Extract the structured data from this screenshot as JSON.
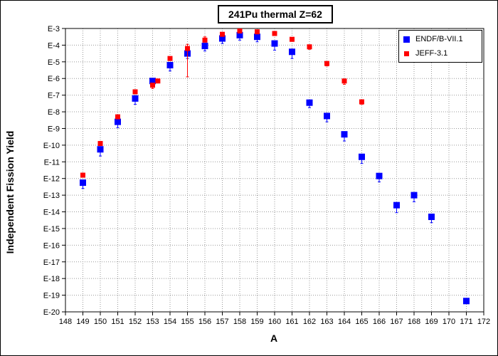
{
  "chart_data": {
    "type": "scatter",
    "title": "241Pu thermal Z=62",
    "xlabel": "A",
    "ylabel": "Independent Fission Yield",
    "xlim": [
      148,
      172
    ],
    "ylim_log10": [
      -20,
      -3
    ],
    "y_scale": "log",
    "grid": true,
    "legend_position": "top-right",
    "x_ticks": [
      "148",
      "149",
      "150",
      "151",
      "152",
      "153",
      "154",
      "155",
      "156",
      "157",
      "158",
      "159",
      "160",
      "161",
      "162",
      "163",
      "164",
      "165",
      "166",
      "167",
      "168",
      "169",
      "170",
      "171",
      "172"
    ],
    "y_ticks": [
      "E-3",
      "E-4",
      "E-5",
      "E-6",
      "E-7",
      "E-8",
      "E-9",
      "E-10",
      "E-11",
      "E-12",
      "E-13",
      "E-14",
      "E-15",
      "E-16",
      "E-17",
      "E-18",
      "E-19",
      "E-20"
    ],
    "series": [
      {
        "name": "ENDF/B-VII.1",
        "color": "#0000ff",
        "marker": "square",
        "x": [
          149,
          150,
          151,
          152,
          153,
          154,
          155,
          156,
          157,
          158,
          159,
          160,
          161,
          162,
          163,
          164,
          165,
          166,
          167,
          168,
          169,
          171
        ],
        "log10_y": [
          -12.25,
          -10.25,
          -8.6,
          -7.2,
          -6.15,
          -5.2,
          -4.5,
          -4.05,
          -3.6,
          -3.4,
          -3.5,
          -3.9,
          -4.4,
          -7.45,
          -8.25,
          -9.35,
          -10.7,
          -11.85,
          -13.6,
          -13.0,
          -14.3,
          -19.35
        ],
        "log10_err_low": [
          0.35,
          0.4,
          0.35,
          0.35,
          0.2,
          0.35,
          0.3,
          0.3,
          0.3,
          0.3,
          0.3,
          0.4,
          0.4,
          0.3,
          0.35,
          0.4,
          0.4,
          0.35,
          0.45,
          0.4,
          0.35,
          0.0
        ],
        "log10_err_high": [
          0.0,
          0.0,
          0.0,
          0.0,
          0.0,
          0.0,
          0.0,
          0.0,
          0.0,
          0.0,
          0.0,
          0.0,
          0.0,
          0.0,
          0.0,
          0.0,
          0.0,
          0.0,
          0.0,
          0.0,
          0.0,
          0.0
        ]
      },
      {
        "name": "JEFF-3.1",
        "color": "#ff0000",
        "marker": "square",
        "x": [
          149,
          150,
          151,
          152,
          153,
          153.3,
          154,
          155,
          156,
          157,
          158,
          159,
          160,
          161,
          162,
          163,
          164,
          165
        ],
        "log10_y": [
          -11.8,
          -9.9,
          -8.3,
          -6.8,
          -6.4,
          -6.15,
          -4.8,
          -4.2,
          -3.7,
          -3.35,
          -3.15,
          -3.2,
          -3.3,
          -3.65,
          -4.1,
          -5.1,
          -6.15,
          -7.4
        ],
        "log10_err_low": [
          0.1,
          0.1,
          0.1,
          0.0,
          0.2,
          0.0,
          0.0,
          1.7,
          0.1,
          0.1,
          0.1,
          0.0,
          0.0,
          0.1,
          0.15,
          0.15,
          0.2,
          0.15
        ],
        "log10_err_high": [
          0.0,
          0.0,
          0.0,
          0.0,
          0.0,
          0.0,
          0.0,
          0.25,
          0.2,
          0.1,
          0.0,
          0.0,
          0.0,
          0.0,
          0.0,
          0.0,
          0.0,
          0.0
        ]
      }
    ]
  }
}
